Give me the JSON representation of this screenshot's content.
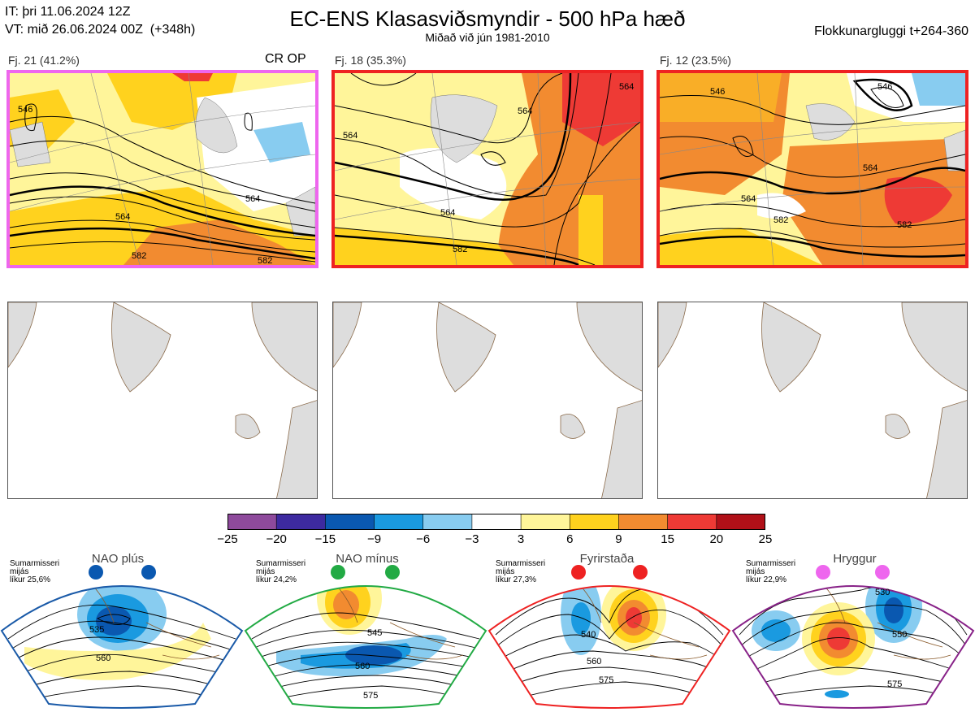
{
  "header": {
    "it_line": "IT: þri 11.06.2024 12Z",
    "vt_line": "VT: mið 26.06.2024 00Z  (+348h)",
    "title": "EC-ENS Klasasviðsmyndir - 500 hPa hæð",
    "subtitle": "Miðað við jún 1981-2010",
    "window": "Flokkunargluggi t+264-360"
  },
  "clusters": [
    {
      "label": "Fj. 21 (41.2%)",
      "extra": "CR OP",
      "border_color": "#ee66ee",
      "contours": [
        "546",
        "564",
        "582",
        "582",
        "564"
      ]
    },
    {
      "label": "Fj. 18 (35.3%)",
      "extra": "",
      "border_color": "#ee2222",
      "contours": [
        "564",
        "564",
        "582",
        "564",
        "564"
      ]
    },
    {
      "label": "Fj. 12 (23.5%)",
      "extra": "",
      "border_color": "#ee2222",
      "contours": [
        "546",
        "546",
        "564",
        "582",
        "564",
        "582"
      ]
    }
  ],
  "colorbar": {
    "colors": [
      "#8e4a9c",
      "#3d2aa0",
      "#0a58b0",
      "#1a9ae0",
      "#88ccf0",
      "#ffffff",
      "#fff59a",
      "#ffd21e",
      "#f28b30",
      "#ee3a35",
      "#b01018"
    ],
    "ticks": [
      "−25",
      "−20",
      "−15",
      "−9",
      "−6",
      "−3",
      "3",
      "6",
      "9",
      "15",
      "20",
      "25"
    ]
  },
  "regimes": [
    {
      "title": "NAO plús",
      "note1": "Sumarmisseri",
      "note2": "mijás",
      "note3": "líkur 25,6%",
      "dot_color": "#0a58b0",
      "border": "#1a5aa8",
      "labels": [
        "535",
        "560"
      ]
    },
    {
      "title": "NAO mínus",
      "note1": "Sumarmisseri",
      "note2": "mijás",
      "note3": "líkur 24,2%",
      "dot_color": "#22aa44",
      "border": "#22aa44",
      "labels": [
        "545",
        "560",
        "575"
      ]
    },
    {
      "title": "Fyrirstaða",
      "note1": "Sumarmisseri",
      "note2": "mijás",
      "note3": "líkur 27,3%",
      "dot_color": "#ee2222",
      "border": "#ee2222",
      "labels": [
        "540",
        "560",
        "575"
      ]
    },
    {
      "title": "Hryggur",
      "note1": "Sumarmisseri",
      "note2": "mijás",
      "note3": "líkur 22,9%",
      "dot_color": "#ee66ee",
      "border": "#882288",
      "labels": [
        "530",
        "550",
        "575"
      ]
    }
  ]
}
